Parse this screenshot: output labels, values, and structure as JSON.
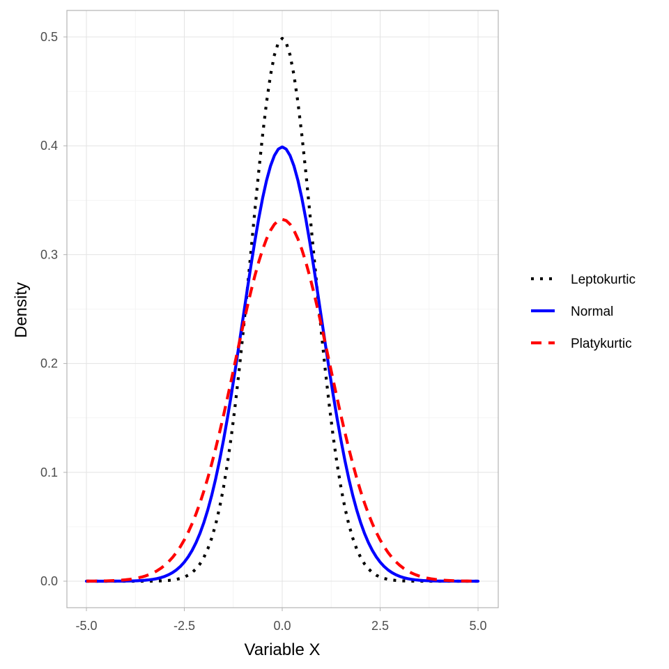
{
  "chart_data": {
    "type": "line",
    "title": "",
    "xlabel": "Variable X",
    "ylabel": "Density",
    "xlim": [
      -5,
      5
    ],
    "ylim": [
      0,
      0.5
    ],
    "x_ticks": [
      "-5.0",
      "-2.5",
      "0.0",
      "2.5",
      "5.0"
    ],
    "x_tick_values": [
      -5,
      -2.5,
      0,
      2.5,
      5
    ],
    "y_ticks": [
      "0.0",
      "0.1",
      "0.2",
      "0.3",
      "0.4",
      "0.5"
    ],
    "y_tick_values": [
      0,
      0.1,
      0.2,
      0.3,
      0.4,
      0.5
    ],
    "grid": true,
    "legend_position": "right",
    "x_sampling": {
      "from": -5,
      "to": 5,
      "step": 0.1
    },
    "series": [
      {
        "name": "Leptokurtic",
        "distribution": "normal",
        "mean": 0,
        "sd": 0.8,
        "peak": 0.499,
        "color": "#000000",
        "linetype": "dotted"
      },
      {
        "name": "Normal",
        "distribution": "normal",
        "mean": 0,
        "sd": 1.0,
        "peak": 0.399,
        "color": "#0000ff",
        "linetype": "solid"
      },
      {
        "name": "Platykurtic",
        "distribution": "normal",
        "mean": 0,
        "sd": 1.2,
        "peak": 0.332,
        "color": "#ff0000",
        "linetype": "dashed"
      }
    ]
  }
}
